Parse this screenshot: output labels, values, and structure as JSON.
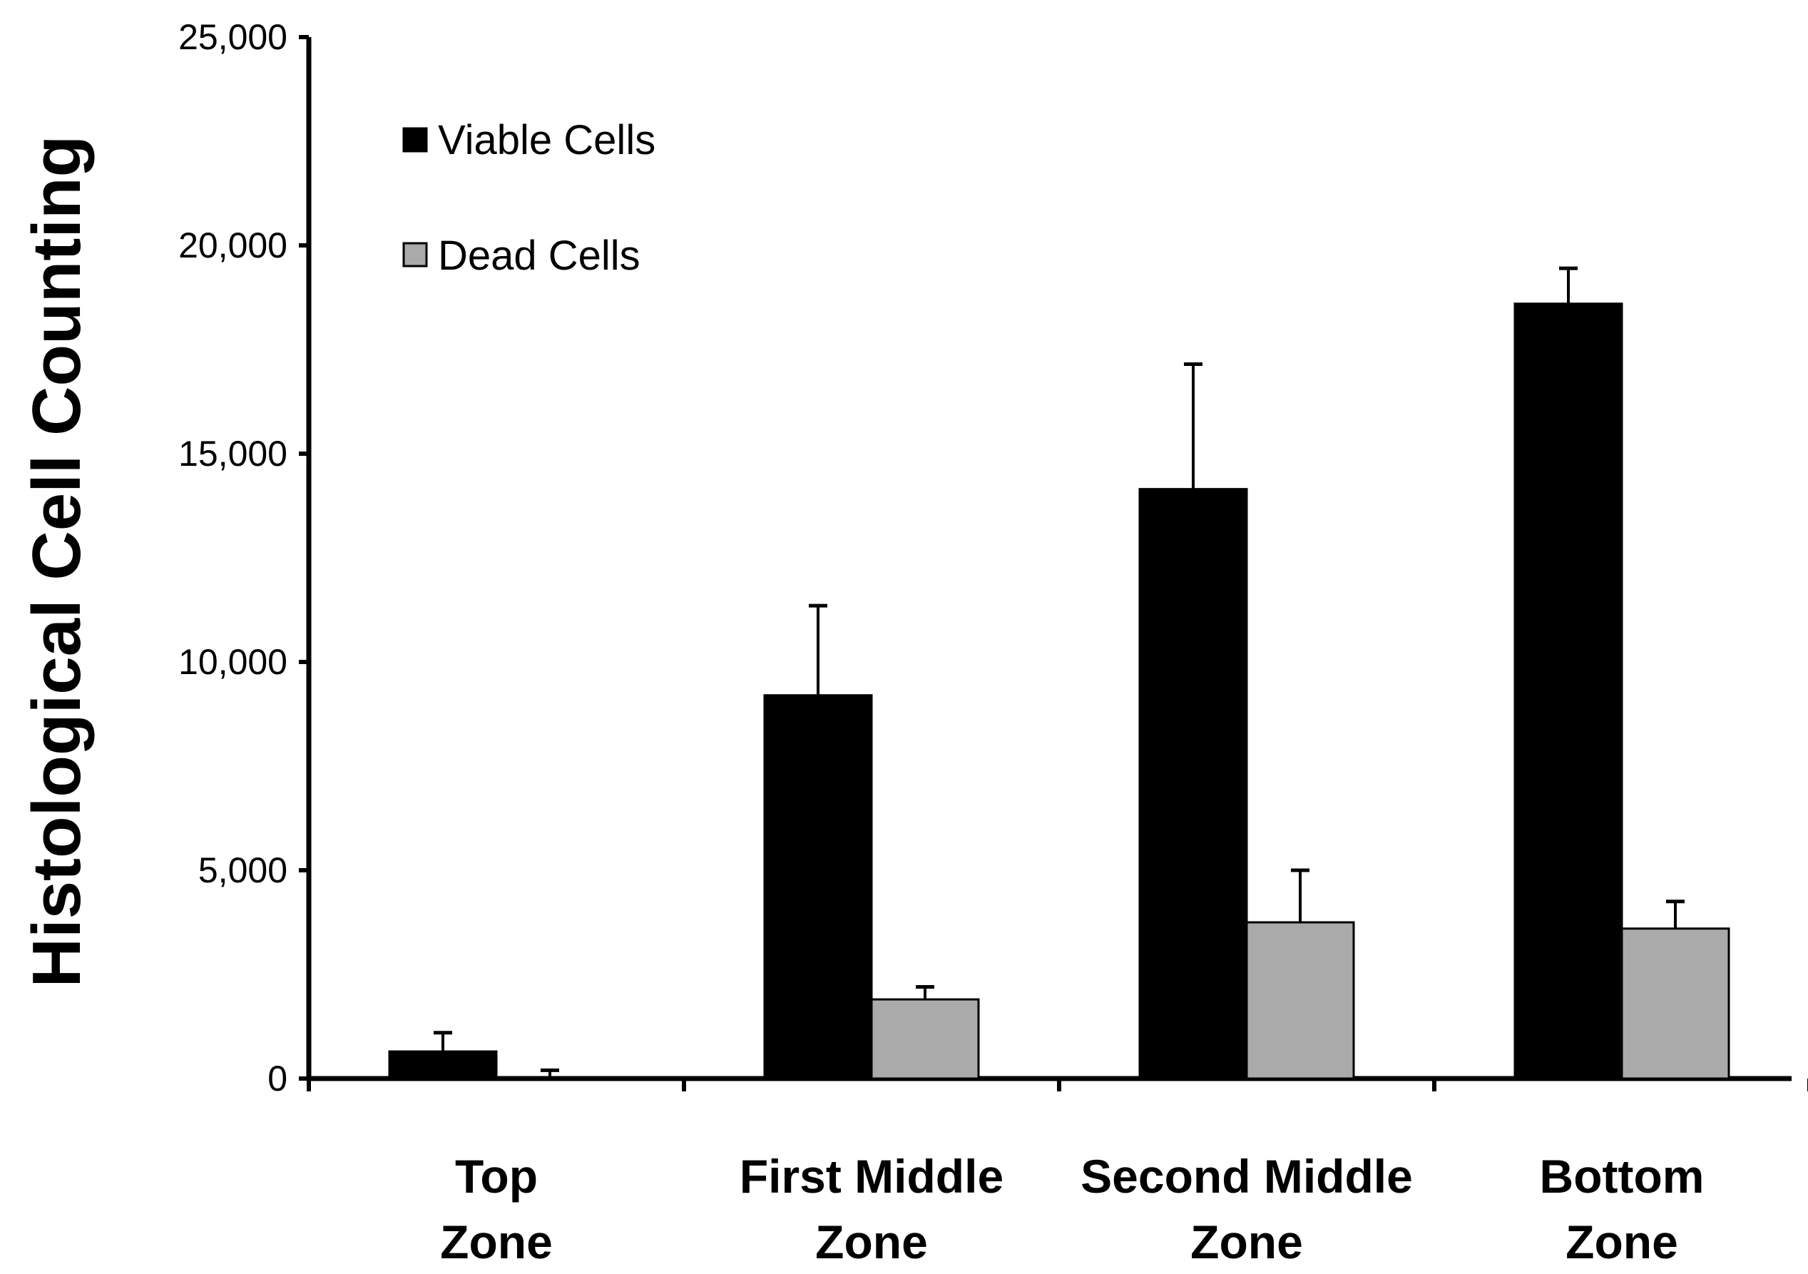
{
  "chart_data": {
    "type": "bar",
    "title": "",
    "xlabel": "",
    "ylabel": "Histological Cell Counting",
    "ylim": [
      0,
      25000
    ],
    "yticks": [
      0,
      5000,
      10000,
      15000,
      20000,
      25000
    ],
    "ytick_labels": [
      "0",
      "5,000",
      "10,000",
      "15,000",
      "20,000",
      "25,000"
    ],
    "categories": [
      [
        "Top",
        "Zone"
      ],
      [
        "First Middle",
        "Zone"
      ],
      [
        "Second Middle",
        "Zone"
      ],
      [
        "Bottom",
        "Zone"
      ]
    ],
    "series": [
      {
        "name": "Viable Cells",
        "color": "#000000",
        "values": [
          650,
          9200,
          14150,
          18600
        ],
        "errors": [
          450,
          2150,
          3000,
          850
        ]
      },
      {
        "name": "Dead Cells",
        "color": "#aaaaaa",
        "values": [
          0,
          1900,
          3750,
          3600
        ],
        "errors": [
          200,
          300,
          1250,
          650
        ]
      }
    ],
    "legend": "top-left",
    "grid": false
  }
}
